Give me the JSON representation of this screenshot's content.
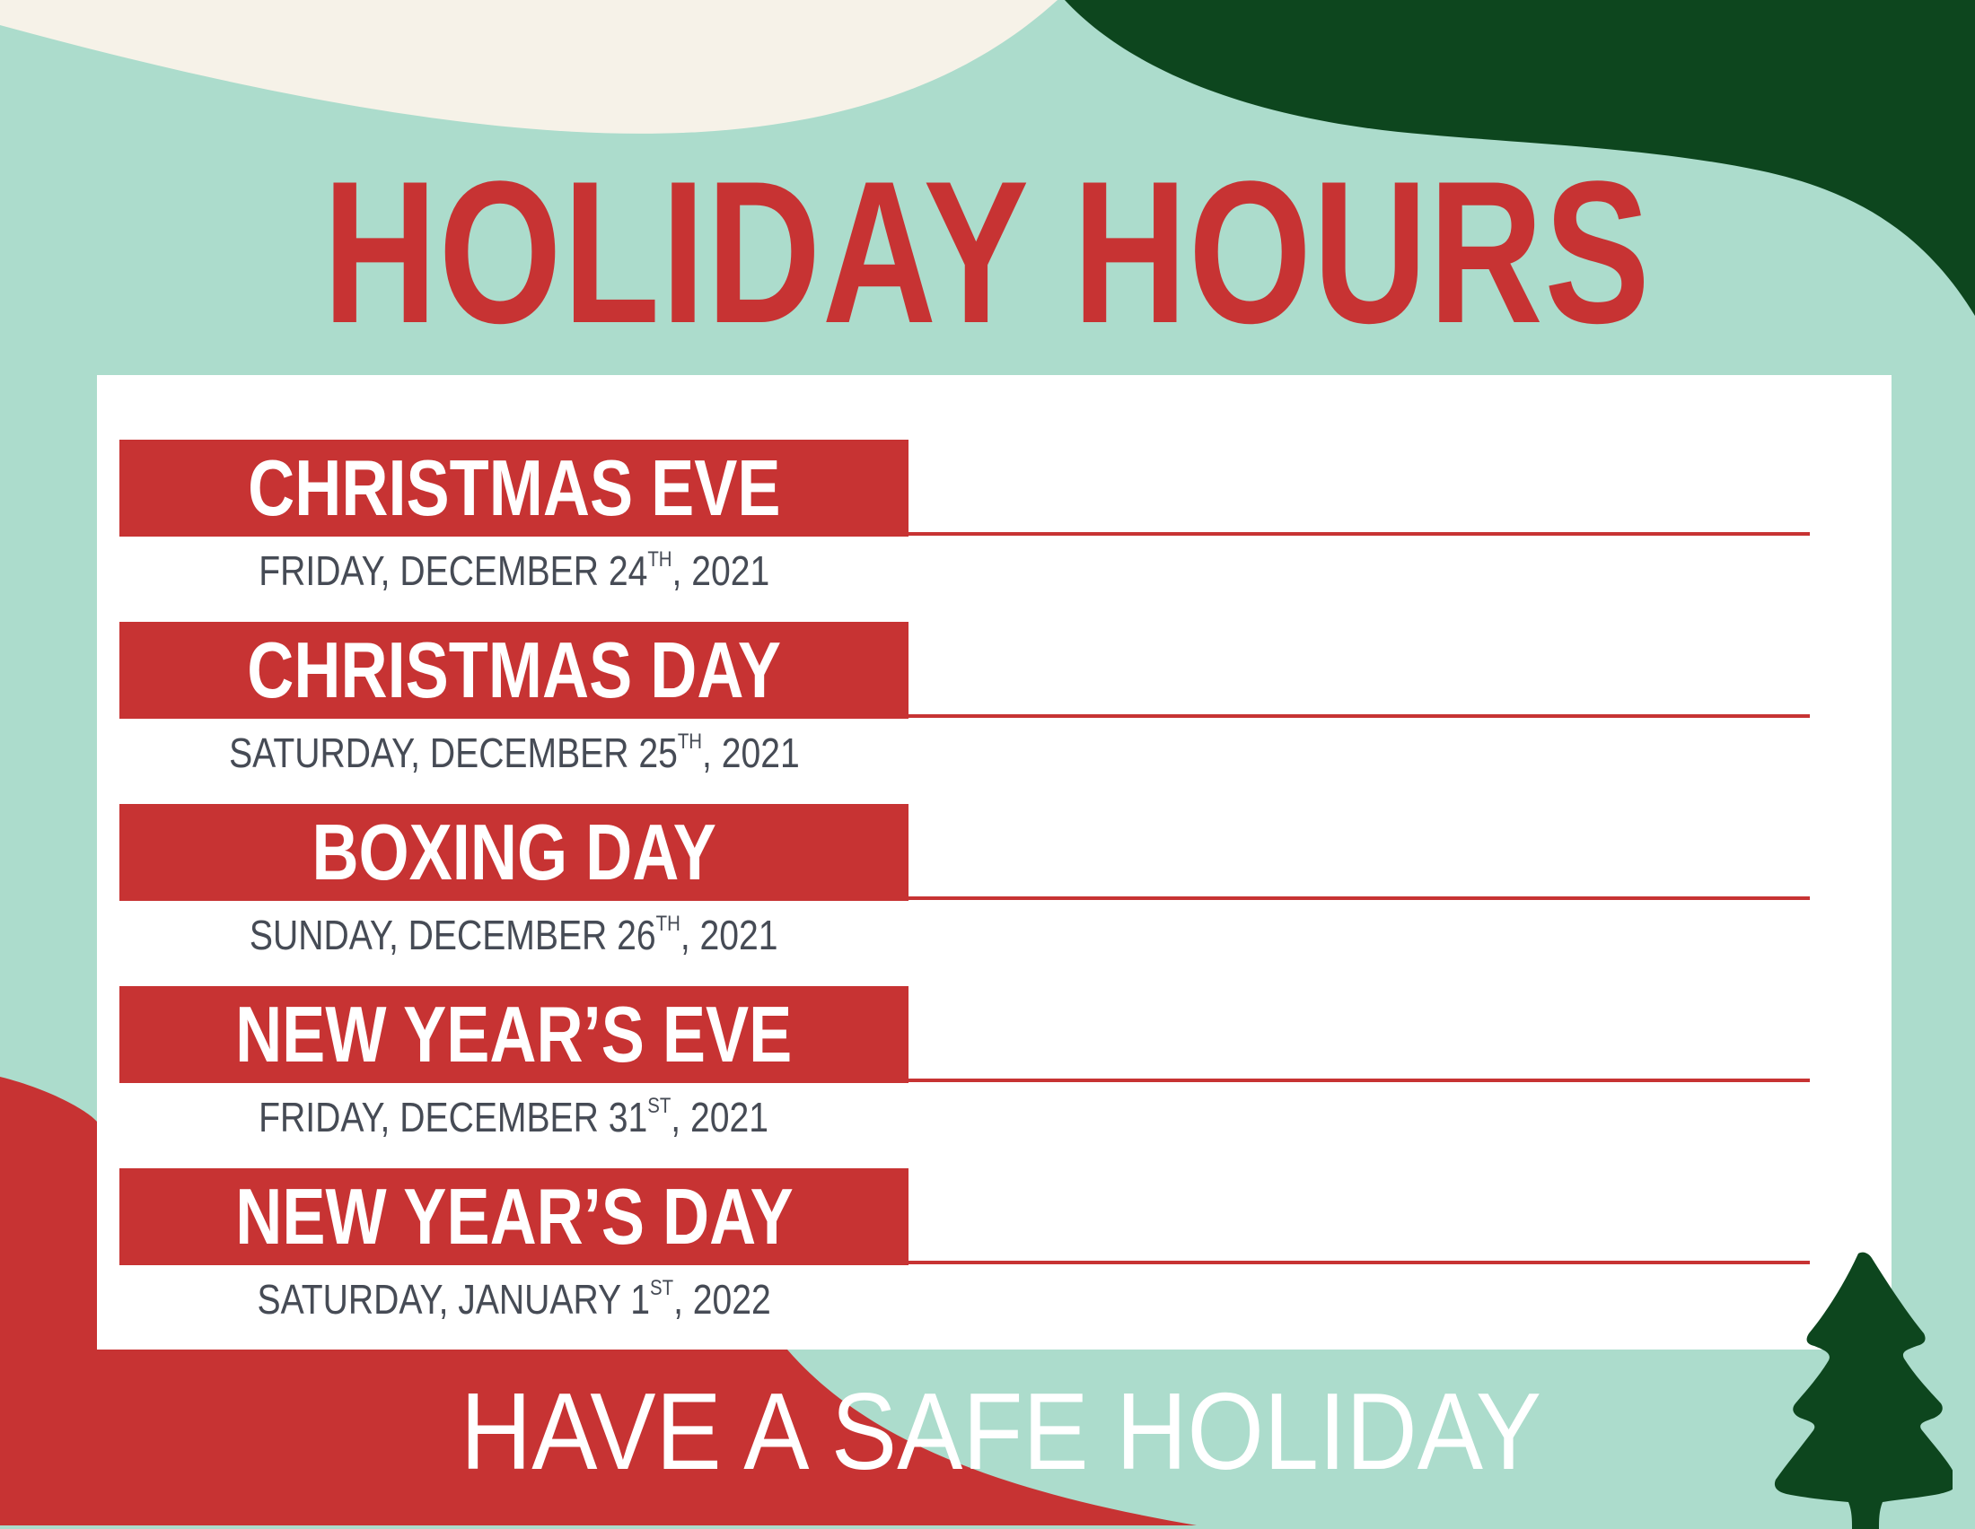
{
  "title": "HOLIDAY HOURS",
  "colors": {
    "background": "#acdccc",
    "red": "#c73333",
    "dark_green": "#0d461e",
    "cream": "#f6f2e8",
    "date_text": "#464b55"
  },
  "holidays": [
    {
      "name": "CHRISTMAS EVE",
      "date_prefix": "FRIDAY, DECEMBER 24",
      "suffix": "TH",
      "year": ", 2021"
    },
    {
      "name": "CHRISTMAS DAY",
      "date_prefix": "SATURDAY, DECEMBER 25",
      "suffix": "TH",
      "year": ", 2021"
    },
    {
      "name": "BOXING DAY",
      "date_prefix": "SUNDAY, DECEMBER 26",
      "suffix": "TH",
      "year": ", 2021"
    },
    {
      "name": "NEW YEAR’S EVE",
      "date_prefix": "FRIDAY, DECEMBER 31",
      "suffix": "ST",
      "year": ", 2021"
    },
    {
      "name": "NEW YEAR’S DAY",
      "date_prefix": "SATURDAY, JANUARY 1",
      "suffix": "ST",
      "year": ", 2022"
    }
  ],
  "footer": "HAVE A SAFE HOLIDAY",
  "decorations": [
    "cream-wave",
    "dark-green-wave",
    "red-wave",
    "christmas-tree-icon"
  ]
}
